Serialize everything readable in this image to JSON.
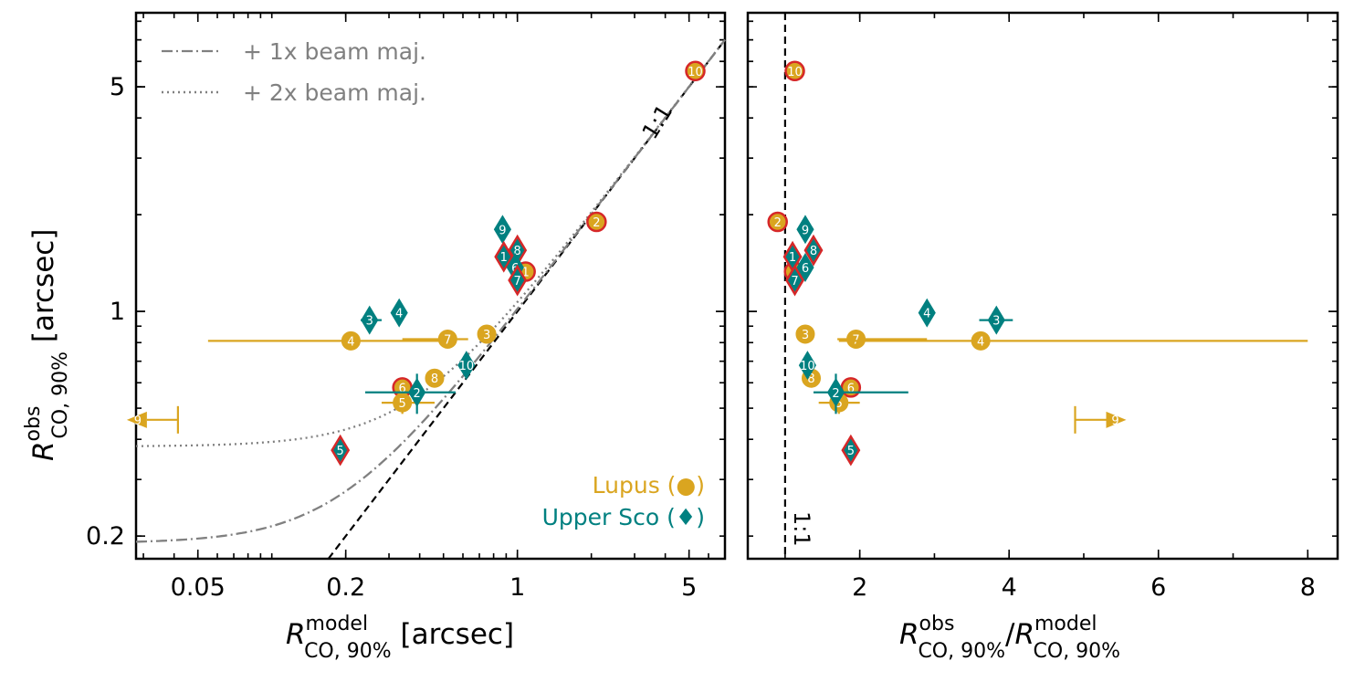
{
  "colors": {
    "lupus": "#daa520",
    "usco": "#008080",
    "edge_highlight": "#d62728",
    "beam": "#808080"
  },
  "legend": {
    "beam1": "+ 1x beam maj.",
    "beam2": "+ 2x beam maj.",
    "lupus": "Lupus (●)",
    "usco": "Upper Sco (♦)"
  },
  "chart_data": [
    {
      "type": "scatter",
      "panel": "left",
      "xscale": "log",
      "yscale": "log",
      "xlim": [
        0.028,
        7.0
      ],
      "ylim": [
        0.17,
        8.5
      ],
      "xticks": [
        {
          "v": 0.05,
          "label": "0.05"
        },
        {
          "v": 0.2,
          "label": "0.2"
        },
        {
          "v": 1,
          "label": "1"
        },
        {
          "v": 5,
          "label": "5"
        }
      ],
      "yticks": [
        {
          "v": 0.2,
          "label": "0.2"
        },
        {
          "v": 1,
          "label": "1"
        },
        {
          "v": 5,
          "label": "5"
        }
      ],
      "xlabel": {
        "base": "R",
        "sup": "model",
        "sub": "CO, 90%",
        "unit": " [arcsec]"
      },
      "ylabel": {
        "base": "R",
        "sup": "obs",
        "sub": "CO, 90%",
        "unit": " [arcsec]"
      },
      "one_to_one_label": "1:1",
      "beam_curves": [
        {
          "name": "+ 1x beam maj.",
          "offset": 0.38,
          "style": "dashdot"
        },
        {
          "name": "+ 2x beam maj.",
          "offset": 0.76,
          "style": "dotted"
        }
      ],
      "points": [
        {
          "id": "10",
          "g": "lupus",
          "x": 5.3,
          "y": 5.6,
          "edge": true
        },
        {
          "id": "2",
          "g": "lupus",
          "x": 2.1,
          "y": 1.9,
          "edge": true
        },
        {
          "id": "1",
          "g": "lupus",
          "x": 1.08,
          "y": 1.33,
          "edge": true
        },
        {
          "id": "3",
          "g": "lupus",
          "x": 0.75,
          "y": 0.85
        },
        {
          "id": "7",
          "g": "lupus",
          "x": 0.52,
          "y": 0.82,
          "xerr": [
            0.34,
            0.63
          ]
        },
        {
          "id": "4",
          "g": "lupus",
          "x": 0.21,
          "y": 0.81,
          "xerr": [
            0.055,
            0.5
          ]
        },
        {
          "id": "8",
          "g": "lupus",
          "x": 0.46,
          "y": 0.62
        },
        {
          "id": "6",
          "g": "lupus",
          "x": 0.34,
          "y": 0.58,
          "edge": true
        },
        {
          "id": "5",
          "g": "lupus",
          "x": 0.34,
          "y": 0.52,
          "xerr": [
            0.28,
            0.46
          ],
          "yerr": [
            0.48,
            0.56
          ]
        },
        {
          "id": "9",
          "g": "lupus",
          "x": 0.031,
          "y": 0.46,
          "upper_x": true
        },
        {
          "id": "9",
          "g": "usco",
          "x": 0.87,
          "y": 1.8
        },
        {
          "id": "8",
          "g": "usco",
          "x": 1.0,
          "y": 1.55,
          "edge": true
        },
        {
          "id": "1",
          "g": "usco",
          "x": 0.88,
          "y": 1.48,
          "edge": true
        },
        {
          "id": "6",
          "g": "usco",
          "x": 0.98,
          "y": 1.37
        },
        {
          "id": "7",
          "g": "usco",
          "x": 1.0,
          "y": 1.25,
          "edge": true
        },
        {
          "id": "4",
          "g": "usco",
          "x": 0.33,
          "y": 0.99
        },
        {
          "id": "3",
          "g": "usco",
          "x": 0.25,
          "y": 0.94,
          "xerr": [
            0.23,
            0.28
          ]
        },
        {
          "id": "10",
          "g": "usco",
          "x": 0.62,
          "y": 0.68
        },
        {
          "id": "2",
          "g": "usco",
          "x": 0.39,
          "y": 0.56,
          "xerr": [
            0.24,
            0.56
          ],
          "yerr": [
            0.48,
            0.64
          ]
        },
        {
          "id": "5",
          "g": "usco",
          "x": 0.19,
          "y": 0.37,
          "edge": true
        }
      ]
    },
    {
      "type": "scatter",
      "panel": "right",
      "xscale": "linear",
      "yscale": "log",
      "xlim": [
        0.5,
        8.4
      ],
      "ylim": [
        0.17,
        8.5
      ],
      "xticks": [
        {
          "v": 2,
          "label": "2"
        },
        {
          "v": 4,
          "label": "4"
        },
        {
          "v": 6,
          "label": "6"
        },
        {
          "v": 8,
          "label": "8"
        }
      ],
      "xlabel": {
        "n_base": "R",
        "n_sup": "obs",
        "n_sub": "CO, 90%",
        "d_base": "R",
        "d_sup": "model",
        "d_sub": "CO, 90%"
      },
      "ylabel": "",
      "one_to_one_x": 1.0,
      "one_to_one_label": "1:1",
      "points": [
        {
          "id": "10",
          "g": "lupus",
          "x": 1.13,
          "y": 5.6,
          "edge": true
        },
        {
          "id": "2",
          "g": "lupus",
          "x": 0.9,
          "y": 1.9,
          "edge": true
        },
        {
          "id": "1",
          "g": "lupus",
          "x": 1.12,
          "y": 1.33,
          "edge": true
        },
        {
          "id": "3",
          "g": "lupus",
          "x": 1.27,
          "y": 0.85
        },
        {
          "id": "7",
          "g": "lupus",
          "x": 1.95,
          "y": 0.82,
          "xerr": [
            1.7,
            2.9
          ]
        },
        {
          "id": "4",
          "g": "lupus",
          "x": 3.62,
          "y": 0.81,
          "xerr": [
            1.72,
            8.0
          ]
        },
        {
          "id": "8",
          "g": "lupus",
          "x": 1.35,
          "y": 0.62
        },
        {
          "id": "6",
          "g": "lupus",
          "x": 1.88,
          "y": 0.58,
          "edge": true
        },
        {
          "id": "5",
          "g": "lupus",
          "x": 1.72,
          "y": 0.52,
          "xerr": [
            1.45,
            2.0
          ],
          "yerr": [
            0.48,
            0.56
          ]
        },
        {
          "id": "9",
          "g": "lupus",
          "x": 5.3,
          "y": 0.46,
          "lower_x": true
        },
        {
          "id": "9",
          "g": "usco",
          "x": 1.27,
          "y": 1.8
        },
        {
          "id": "8",
          "g": "usco",
          "x": 1.38,
          "y": 1.55,
          "edge": true
        },
        {
          "id": "1",
          "g": "usco",
          "x": 1.1,
          "y": 1.48,
          "edge": true
        },
        {
          "id": "6",
          "g": "usco",
          "x": 1.27,
          "y": 1.37
        },
        {
          "id": "7",
          "g": "usco",
          "x": 1.13,
          "y": 1.25,
          "edge": true
        },
        {
          "id": "4",
          "g": "usco",
          "x": 2.9,
          "y": 0.99
        },
        {
          "id": "3",
          "g": "usco",
          "x": 3.83,
          "y": 0.94,
          "xerr": [
            3.6,
            4.05
          ]
        },
        {
          "id": "10",
          "g": "usco",
          "x": 1.3,
          "y": 0.68
        },
        {
          "id": "2",
          "g": "usco",
          "x": 1.68,
          "y": 0.56,
          "xerr": [
            1.38,
            2.65
          ],
          "yerr": [
            0.48,
            0.64
          ]
        },
        {
          "id": "5",
          "g": "usco",
          "x": 1.88,
          "y": 0.37,
          "edge": true
        }
      ]
    }
  ]
}
